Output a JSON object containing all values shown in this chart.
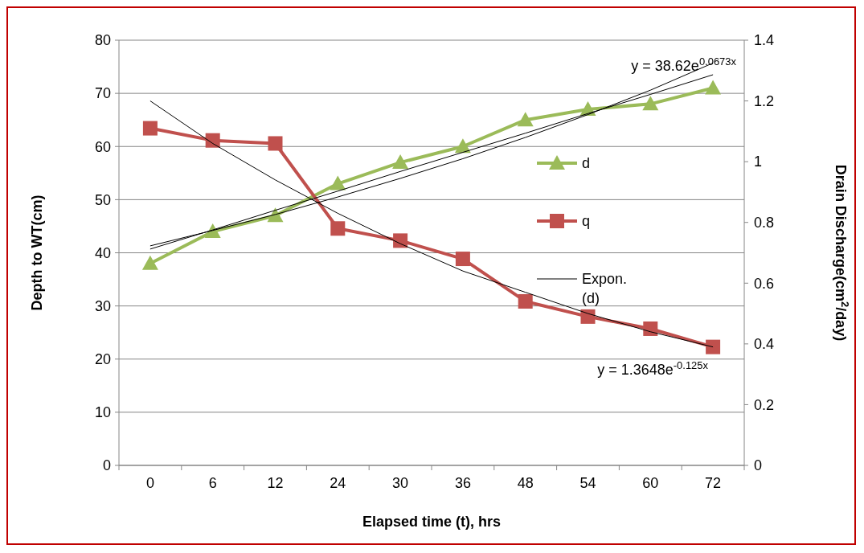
{
  "chart_data": {
    "type": "line",
    "categories": [
      "0",
      "6",
      "12",
      "24",
      "30",
      "36",
      "48",
      "54",
      "60",
      "72"
    ],
    "xlabel": "Elapsed time (t), hrs",
    "ylabel": "Depth to WT(cm)",
    "y2label": "Drain Discharge(cm$^{2}$/day)",
    "ylim": [
      0,
      80
    ],
    "yticks": [
      0,
      10,
      20,
      30,
      40,
      50,
      60,
      70,
      80
    ],
    "y2lim": [
      0,
      1.4
    ],
    "y2ticks": [
      {
        "value": 0,
        "label": "0"
      },
      {
        "value": 0.2,
        "label": "0.2"
      },
      {
        "value": 0.4,
        "label": "0.4"
      },
      {
        "value": 0.6,
        "label": "0.6"
      },
      {
        "value": 0.8,
        "label": "0.8"
      },
      {
        "value": 1,
        "label": "1"
      },
      {
        "value": 1.2,
        "label": "1.2"
      },
      {
        "value": 1.4,
        "label": "1.4"
      }
    ],
    "grid": "y",
    "legend": "right",
    "series": [
      {
        "name": "d",
        "color": "#9bbb59",
        "marker": "triangle",
        "values": [
          38,
          44,
          47,
          53,
          57,
          60,
          65,
          67,
          68,
          71
        ]
      },
      {
        "name": "q",
        "color": "#c0504d",
        "marker": "square",
        "axis": "y2",
        "values": [
          1.11,
          1.07,
          1.06,
          0.78,
          0.74,
          0.68,
          0.54,
          0.49,
          0.45,
          0.39
        ]
      },
      {
        "name": "Expon. (d)",
        "color": "#000000",
        "marker": "none",
        "values": [
          41.3,
          44.2,
          47.2,
          50.5,
          54.0,
          57.7,
          61.7,
          66.0,
          70.6,
          75.7
        ]
      },
      {
        "color": "#000000",
        "marker": "none",
        "values": [
          40.7,
          44.3,
          48.0,
          51.6,
          55.3,
          58.9,
          62.5,
          66.2,
          69.8,
          73.5
        ]
      },
      {
        "color": "#000000",
        "marker": "none",
        "axis": "y2",
        "values": [
          1.2,
          1.06,
          0.94,
          0.83,
          0.73,
          0.64,
          0.57,
          0.5,
          0.44,
          0.39
        ]
      }
    ],
    "annotations": [
      "y = 38.62e$^{0.0673x}$",
      "y = 1.3648e$^{-0.125x}$"
    ]
  }
}
